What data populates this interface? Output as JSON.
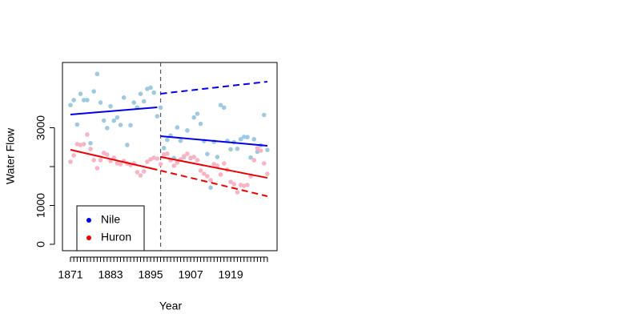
{
  "chart_data": {
    "type": "scatter",
    "xlabel": "Year",
    "ylabel": "Water Flow",
    "x": [
      1871,
      1872,
      1873,
      1874,
      1875,
      1876,
      1877,
      1878,
      1879,
      1880,
      1881,
      1882,
      1883,
      1884,
      1885,
      1886,
      1887,
      1888,
      1889,
      1890,
      1891,
      1892,
      1893,
      1894,
      1895,
      1896,
      1897,
      1898,
      1899,
      1900,
      1901,
      1902,
      1903,
      1904,
      1905,
      1906,
      1907,
      1908,
      1909,
      1910,
      1911,
      1912,
      1913,
      1914,
      1915,
      1916,
      1917,
      1918,
      1919,
      1920,
      1921,
      1922,
      1923,
      1924,
      1925,
      1926,
      1927,
      1928,
      1929,
      1930
    ],
    "series": [
      {
        "name": "Nile",
        "color": "#0000ee",
        "point_color": "#9ecae1",
        "values": [
          3584,
          3712,
          3082,
          3872,
          3712,
          3712,
          2602,
          3936,
          4384,
          3648,
          3184,
          2992,
          3552,
          3181,
          3264,
          3072,
          3776,
          2557,
          3066,
          3648,
          3520,
          3872,
          3680,
          4000,
          4032,
          3904,
          3296,
          3520,
          2477,
          2688,
          2797,
          2221,
          3008,
          2666,
          2243,
          2931,
          2214,
          3264,
          3360,
          3101,
          2659,
          2323,
          1459,
          2637,
          2246,
          3584,
          3520,
          2662,
          2445,
          2627,
          2458,
          2704,
          2765,
          2758,
          2234,
          2704,
          2381,
          2547,
          3328,
          2429
        ],
        "fits": [
          {
            "x": [
              1871,
              1897
            ],
            "values": [
              3340,
              3526
            ],
            "dashed": false
          },
          {
            "x": [
              1898,
              1930
            ],
            "values": [
              2784,
              2536
            ],
            "dashed": false
          },
          {
            "x": [
              1898,
              1930
            ],
            "values": [
              3876,
              4186
            ],
            "dashed": true
          }
        ]
      },
      {
        "name": "Huron",
        "color": "#ee0000",
        "point_color": "#f9b4c4",
        "values": [
          2124,
          2289,
          2577,
          2557,
          2577,
          2825,
          2454,
          2165,
          1959,
          2165,
          2351,
          2309,
          2144,
          2227,
          2082,
          2062,
          2144,
          2082,
          2041,
          2082,
          1856,
          1773,
          1876,
          2124,
          2186,
          2227,
          2206,
          2062,
          2309,
          2330,
          2165,
          2021,
          2103,
          2186,
          2268,
          2330,
          2227,
          2248,
          2165,
          1897,
          1814,
          1753,
          1650,
          2062,
          2021,
          1794,
          2082,
          1918,
          1608,
          1546,
          1340,
          1526,
          1505,
          1526,
          1753,
          2165,
          2474,
          2412,
          2082,
          1814
        ],
        "fits": [
          {
            "x": [
              1871,
              1897
            ],
            "values": [
              2433,
              1918
            ],
            "dashed": false
          },
          {
            "x": [
              1898,
              1930
            ],
            "values": [
              2250,
              1710
            ],
            "dashed": false
          },
          {
            "x": [
              1898,
              1930
            ],
            "values": [
              1897,
              1237
            ],
            "dashed": true
          }
        ]
      }
    ],
    "intervention": 1898,
    "xlim": [
      1868.6,
      1932.9
    ],
    "ylim": [
      -165,
      4680
    ],
    "xticks": [
      1871,
      1883,
      1895,
      1907,
      1919
    ],
    "yticks": [
      0,
      1000,
      {
        "value": 2000,
        "label": null
      },
      3000
    ],
    "legend": "bottom-left"
  }
}
